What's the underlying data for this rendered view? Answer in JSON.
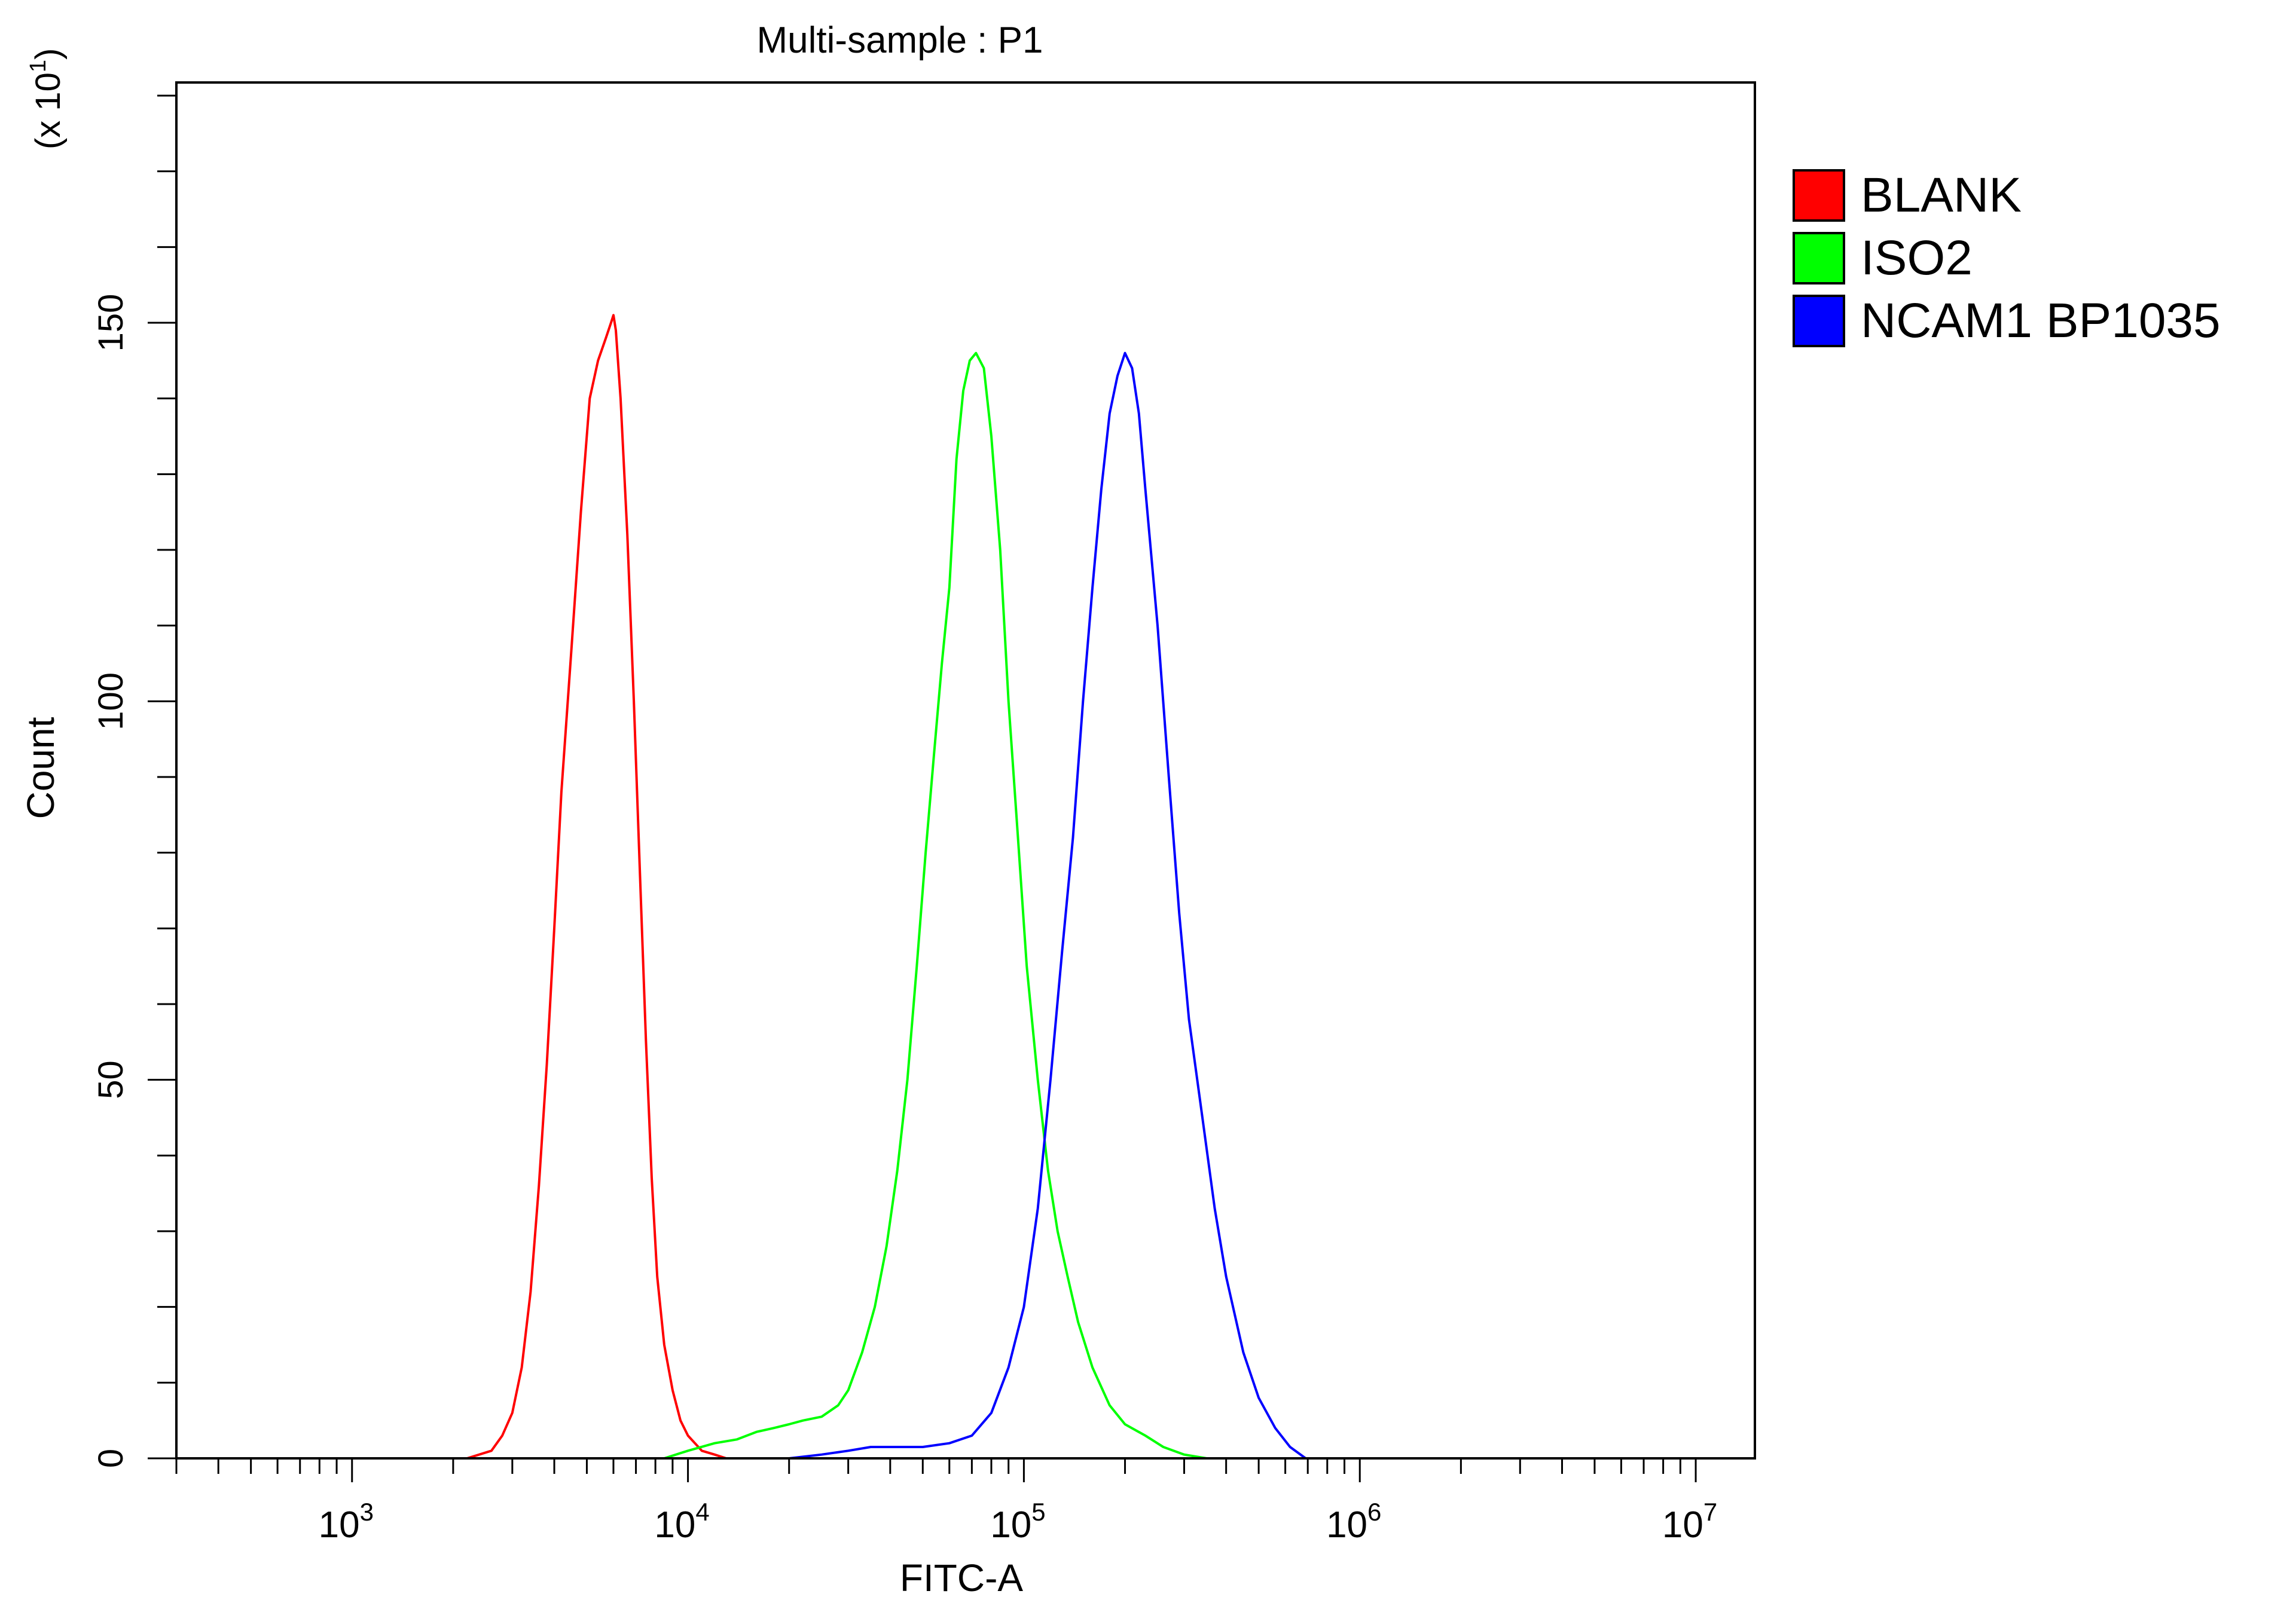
{
  "chart_data": {
    "type": "line",
    "title": "Multi-sample : P1",
    "xlabel": "FITC-A",
    "ylabel": "Count",
    "y_multiplier": "(x 10",
    "y_multiplier_exp": "1",
    "y_multiplier_close": ")",
    "x_scale": "log",
    "xlim": [
      300,
      15000000
    ],
    "ylim": [
      0,
      180
    ],
    "x_ticks": [
      {
        "value": 1000,
        "base": "10",
        "exp": "3"
      },
      {
        "value": 10000,
        "base": "10",
        "exp": "4"
      },
      {
        "value": 100000,
        "base": "10",
        "exp": "5"
      },
      {
        "value": 1000000,
        "base": "10",
        "exp": "6"
      },
      {
        "value": 10000000,
        "base": "10",
        "exp": "7"
      }
    ],
    "y_ticks": [
      {
        "value": 0,
        "label": "0"
      },
      {
        "value": 50,
        "label": "50"
      },
      {
        "value": 100,
        "label": "100"
      },
      {
        "value": 150,
        "label": "150"
      }
    ],
    "grid": false,
    "legend_position": "right",
    "series": [
      {
        "name": "BLANK",
        "color": "#ff0000",
        "x": [
          300,
          2200,
          2600,
          2800,
          3000,
          3200,
          3400,
          3600,
          3800,
          4000,
          4200,
          4500,
          4800,
          5100,
          5400,
          5700,
          5900,
          6000,
          6100,
          6300,
          6600,
          6900,
          7200,
          7500,
          7800,
          8100,
          8500,
          9000,
          9500,
          10000,
          11000,
          12000,
          13000,
          15000000
        ],
        "y": [
          0,
          0,
          1,
          3,
          6,
          12,
          22,
          36,
          52,
          70,
          88,
          107,
          125,
          140,
          145,
          148,
          150,
          151,
          149,
          140,
          122,
          100,
          77,
          55,
          37,
          24,
          15,
          9,
          5,
          3,
          1,
          0.5,
          0,
          0
        ]
      },
      {
        "name": "ISO2",
        "color": "#00ff00",
        "x": [
          300,
          8500,
          10000,
          12000,
          14000,
          16000,
          18000,
          20000,
          22000,
          25000,
          28000,
          30000,
          33000,
          36000,
          39000,
          42000,
          45000,
          48000,
          51000,
          54000,
          57000,
          60000,
          63000,
          66000,
          69000,
          72000,
          76000,
          80000,
          85000,
          90000,
          96000,
          102000,
          110000,
          118000,
          126000,
          135000,
          145000,
          160000,
          180000,
          200000,
          230000,
          260000,
          300000,
          350000,
          15000000
        ],
        "y": [
          0,
          0,
          1,
          2,
          2.5,
          3.5,
          4,
          4.5,
          5,
          5.5,
          7,
          9,
          14,
          20,
          28,
          38,
          50,
          65,
          80,
          93,
          105,
          115,
          132,
          141,
          145,
          146,
          144,
          135,
          120,
          100,
          82,
          65,
          50,
          38,
          30,
          24,
          18,
          12,
          7,
          4.5,
          3,
          1.5,
          0.5,
          0,
          0
        ]
      },
      {
        "name": "NCAM1 BP1035",
        "color": "#0000ff",
        "x": [
          300,
          20000,
          25000,
          30000,
          35000,
          40000,
          45000,
          50000,
          60000,
          70000,
          80000,
          90000,
          100000,
          110000,
          120000,
          130000,
          140000,
          150000,
          160000,
          170000,
          180000,
          190000,
          200000,
          210000,
          220000,
          230000,
          250000,
          270000,
          290000,
          310000,
          340000,
          370000,
          400000,
          450000,
          500000,
          560000,
          620000,
          690000,
          15000000
        ],
        "y": [
          0,
          0,
          0.5,
          1,
          1.5,
          1.5,
          1.5,
          1.5,
          2,
          3,
          6,
          12,
          20,
          33,
          50,
          67,
          82,
          100,
          115,
          128,
          138,
          143,
          146,
          144,
          138,
          128,
          110,
          90,
          72,
          58,
          45,
          33,
          24,
          14,
          8,
          4,
          1.5,
          0,
          0
        ]
      }
    ]
  }
}
